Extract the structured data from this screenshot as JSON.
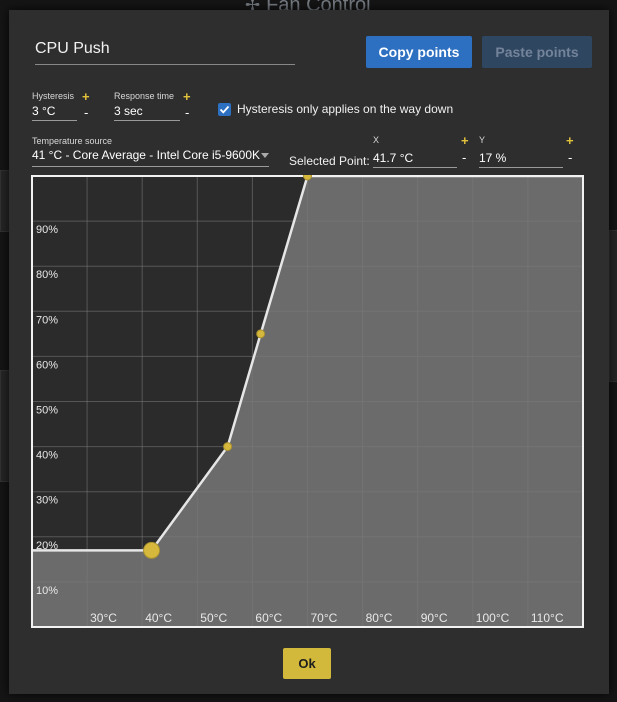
{
  "background": {
    "app_title": "Fan Control"
  },
  "dialog": {
    "control_name": "CPU Push",
    "copy_points_label": "Copy points",
    "paste_points_label": "Paste points",
    "hysteresis": {
      "label": "Hysteresis",
      "value": "3 °C",
      "plus": "+",
      "minus": "-"
    },
    "response_time": {
      "label": "Response time",
      "value": "3 sec",
      "plus": "+",
      "minus": "-"
    },
    "hysteresis_down": {
      "label": "Hysteresis only applies on the way down",
      "checked": true
    },
    "temperature_source": {
      "label": "Temperature source",
      "value": "41 °C - Core Average - Intel Core i5-9600K"
    },
    "selected_point": {
      "label": "Selected Point:",
      "x_label": "X",
      "x_value": "41.7 °C",
      "y_label": "Y",
      "y_value": "17 %",
      "plus": "+",
      "minus": "-"
    },
    "ok_label": "Ok"
  },
  "chart_data": {
    "type": "line",
    "xlim": [
      20,
      120
    ],
    "ylim": [
      0,
      100
    ],
    "x_ticks": [
      {
        "v": 30,
        "label": "30°C"
      },
      {
        "v": 40,
        "label": "40°C"
      },
      {
        "v": 50,
        "label": "50°C"
      },
      {
        "v": 60,
        "label": "60°C"
      },
      {
        "v": 70,
        "label": "70°C"
      },
      {
        "v": 80,
        "label": "80°C"
      },
      {
        "v": 90,
        "label": "90°C"
      },
      {
        "v": 100,
        "label": "100°C"
      },
      {
        "v": 110,
        "label": "110°C"
      }
    ],
    "y_ticks": [
      {
        "v": 10,
        "label": "10%"
      },
      {
        "v": 20,
        "label": "20%"
      },
      {
        "v": 30,
        "label": "30%"
      },
      {
        "v": 40,
        "label": "40%"
      },
      {
        "v": 50,
        "label": "50%"
      },
      {
        "v": 60,
        "label": "60%"
      },
      {
        "v": 70,
        "label": "70%"
      },
      {
        "v": 80,
        "label": "80%"
      },
      {
        "v": 90,
        "label": "90%"
      }
    ],
    "points": [
      {
        "x": 41.7,
        "y": 17,
        "selected": true
      },
      {
        "x": 55.5,
        "y": 40,
        "selected": false
      },
      {
        "x": 61.5,
        "y": 65,
        "selected": false
      },
      {
        "x": 70,
        "y": 100,
        "selected": false
      }
    ],
    "grid": true,
    "colors": {
      "bg_dark": "#2b2b2b",
      "bg_light": "#595959",
      "fill": "#6b6b6b",
      "line": "#e6e6e6",
      "point": "#d5b83c"
    }
  }
}
